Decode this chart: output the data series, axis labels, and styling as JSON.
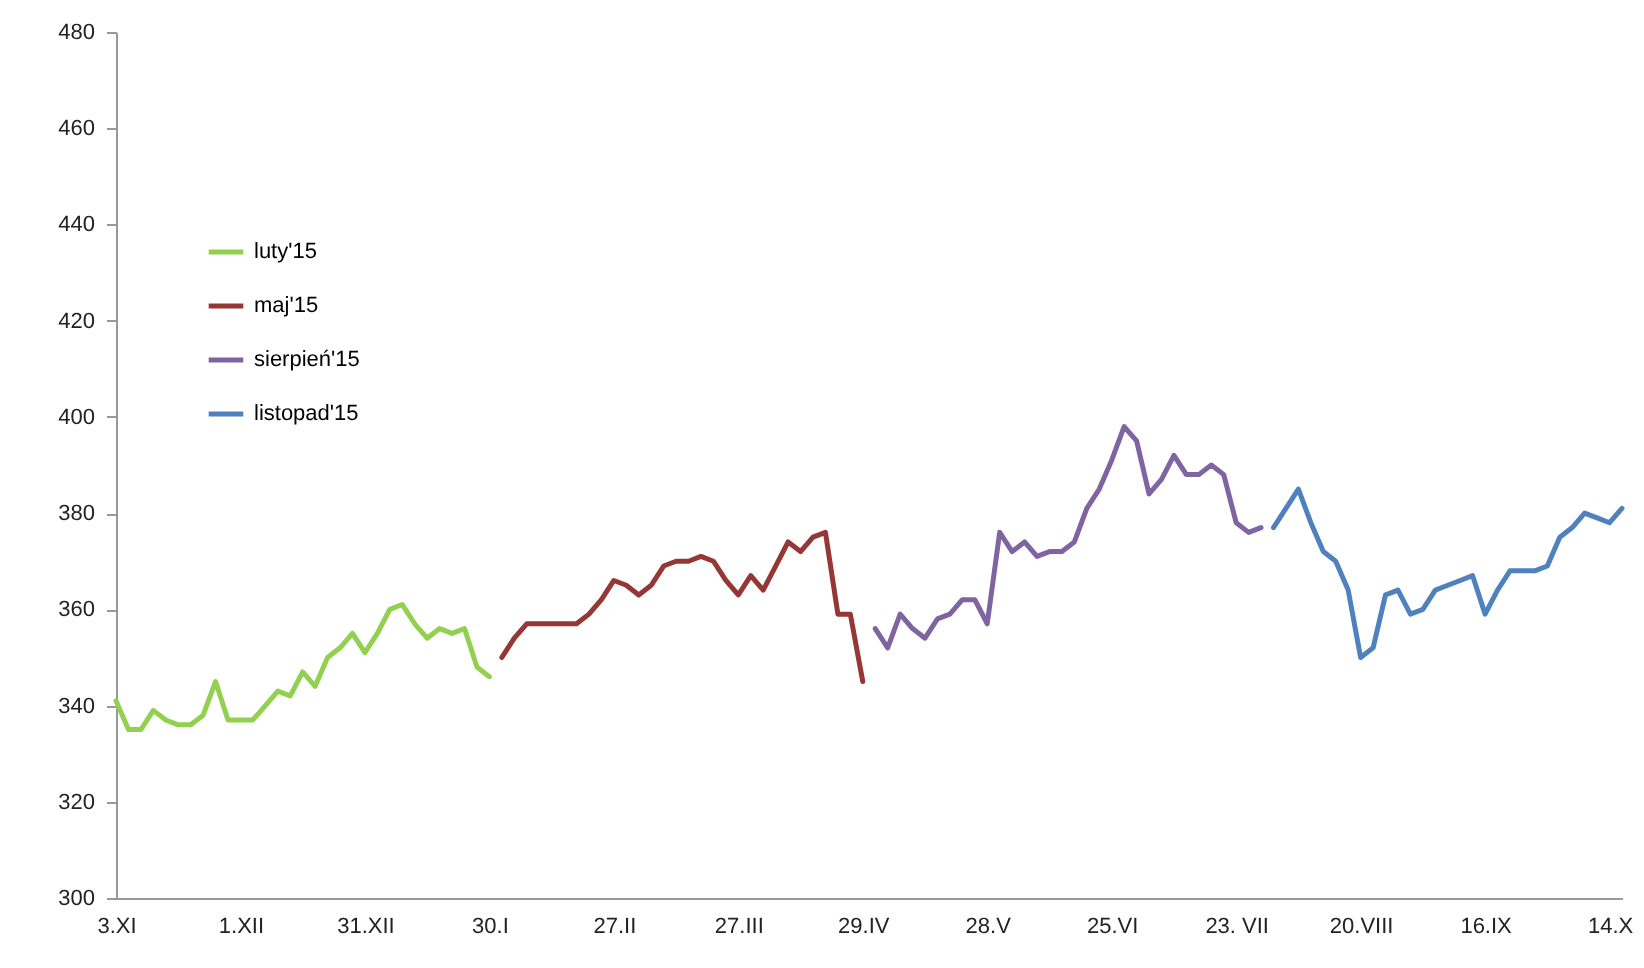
{
  "chart_data": {
    "type": "line",
    "categories": [
      "3.XI",
      null,
      null,
      null,
      null,
      null,
      null,
      null,
      null,
      null,
      "1.XII",
      null,
      null,
      null,
      null,
      null,
      null,
      null,
      null,
      null,
      "31.XII",
      null,
      null,
      null,
      null,
      null,
      null,
      null,
      null,
      null,
      "30.I",
      null,
      null,
      null,
      null,
      null,
      null,
      null,
      null,
      null,
      "27.II",
      null,
      null,
      null,
      null,
      null,
      null,
      null,
      null,
      null,
      "27.III",
      null,
      null,
      null,
      null,
      null,
      null,
      null,
      null,
      null,
      "29.IV",
      null,
      null,
      null,
      null,
      null,
      null,
      null,
      null,
      null,
      "28.V",
      null,
      null,
      null,
      null,
      null,
      null,
      null,
      null,
      null,
      "25.VI",
      null,
      null,
      null,
      null,
      null,
      null,
      null,
      null,
      null,
      "23. VII",
      null,
      null,
      null,
      null,
      null,
      null,
      null,
      null,
      null,
      "20.VIII",
      null,
      null,
      null,
      null,
      null,
      null,
      null,
      null,
      null,
      "16.IX",
      null,
      null,
      null,
      null,
      null,
      null,
      null,
      null,
      null,
      "14.X",
      null
    ],
    "ylim": [
      300,
      480
    ],
    "yticks": [
      300,
      320,
      340,
      360,
      380,
      400,
      420,
      440,
      460,
      480
    ],
    "legend": "top left",
    "line_style": "solid",
    "series": [
      {
        "name": "luty'15",
        "color": "#92d050",
        "values": [
          341,
          335,
          335,
          339,
          337,
          336,
          336,
          338,
          345,
          337,
          337,
          337,
          340,
          343,
          342,
          347,
          344,
          350,
          352,
          355,
          351,
          355,
          360,
          361,
          357,
          354,
          356,
          355,
          356,
          348,
          346,
          null,
          null,
          null,
          null,
          null,
          null,
          null,
          null,
          null,
          null,
          null,
          null,
          null,
          null,
          null,
          null,
          null,
          null,
          null,
          null,
          null,
          null,
          null,
          null,
          null,
          null,
          null,
          null,
          null,
          null,
          null,
          null,
          null,
          null,
          null,
          null,
          null,
          null,
          null,
          null,
          null,
          null,
          null,
          null,
          null,
          null,
          null,
          null,
          null,
          null,
          null,
          null,
          null,
          null,
          null,
          null,
          null,
          null,
          null,
          null,
          null,
          null,
          null,
          null,
          null,
          null,
          null,
          null,
          null,
          null,
          null,
          null,
          null,
          null,
          null,
          null,
          null,
          null,
          null,
          null,
          null,
          null,
          null,
          null,
          null,
          null,
          null,
          null,
          null,
          null,
          null
        ]
      },
      {
        "name": "maj'15",
        "color": "#953735",
        "values": [
          null,
          null,
          null,
          null,
          null,
          null,
          null,
          null,
          null,
          null,
          null,
          null,
          null,
          null,
          null,
          null,
          null,
          null,
          null,
          null,
          null,
          null,
          null,
          null,
          null,
          null,
          null,
          null,
          null,
          null,
          null,
          350,
          354,
          357,
          357,
          357,
          357,
          357,
          359,
          362,
          366,
          365,
          363,
          365,
          369,
          370,
          370,
          371,
          370,
          366,
          363,
          367,
          364,
          369,
          374,
          372,
          375,
          376,
          359,
          359,
          345,
          null,
          null,
          null,
          null,
          null,
          null,
          null,
          null,
          null,
          null,
          null,
          null,
          null,
          null,
          null,
          null,
          null,
          null,
          null,
          null,
          null,
          null,
          null,
          null,
          null,
          null,
          null,
          null,
          null,
          null,
          null,
          null,
          null,
          null,
          null,
          null,
          null,
          null,
          null,
          null,
          null,
          null,
          null,
          null,
          null,
          null,
          null,
          null,
          null,
          null,
          null,
          null,
          null,
          null,
          null,
          null,
          null,
          null,
          null,
          null,
          null
        ]
      },
      {
        "name": "sierpień'15",
        "color": "#8064a2",
        "values": [
          null,
          null,
          null,
          null,
          null,
          null,
          null,
          null,
          null,
          null,
          null,
          null,
          null,
          null,
          null,
          null,
          null,
          null,
          null,
          null,
          null,
          null,
          null,
          null,
          null,
          null,
          null,
          null,
          null,
          null,
          null,
          null,
          null,
          null,
          null,
          null,
          null,
          null,
          null,
          null,
          null,
          null,
          null,
          null,
          null,
          null,
          null,
          null,
          null,
          null,
          null,
          null,
          null,
          null,
          null,
          null,
          null,
          null,
          null,
          null,
          null,
          356,
          352,
          359,
          356,
          354,
          358,
          359,
          362,
          362,
          357,
          376,
          372,
          374,
          371,
          372,
          372,
          374,
          381,
          385,
          391,
          398,
          395,
          384,
          387,
          392,
          388,
          388,
          390,
          388,
          378,
          376,
          377,
          null,
          null,
          null,
          null,
          null,
          null,
          null,
          null,
          null,
          null,
          null,
          null,
          null,
          null,
          null,
          null,
          null,
          null,
          null,
          null,
          null,
          null,
          null,
          null,
          null,
          null,
          null,
          null,
          null
        ]
      },
      {
        "name": "listopad'15",
        "color": "#4f81bd",
        "values": [
          null,
          null,
          null,
          null,
          null,
          null,
          null,
          null,
          null,
          null,
          null,
          null,
          null,
          null,
          null,
          null,
          null,
          null,
          null,
          null,
          null,
          null,
          null,
          null,
          null,
          null,
          null,
          null,
          null,
          null,
          null,
          null,
          null,
          null,
          null,
          null,
          null,
          null,
          null,
          null,
          null,
          null,
          null,
          null,
          null,
          null,
          null,
          null,
          null,
          null,
          null,
          null,
          null,
          null,
          null,
          null,
          null,
          null,
          null,
          null,
          null,
          null,
          null,
          null,
          null,
          null,
          null,
          null,
          null,
          null,
          null,
          null,
          null,
          null,
          null,
          null,
          null,
          null,
          null,
          null,
          null,
          null,
          null,
          null,
          null,
          null,
          null,
          null,
          null,
          null,
          null,
          null,
          null,
          377,
          381,
          385,
          378,
          372,
          370,
          364,
          350,
          352,
          363,
          364,
          359,
          360,
          364,
          365,
          366,
          367,
          359,
          364,
          368,
          368,
          368,
          369,
          375,
          377,
          380,
          379,
          378,
          381
        ]
      }
    ]
  }
}
